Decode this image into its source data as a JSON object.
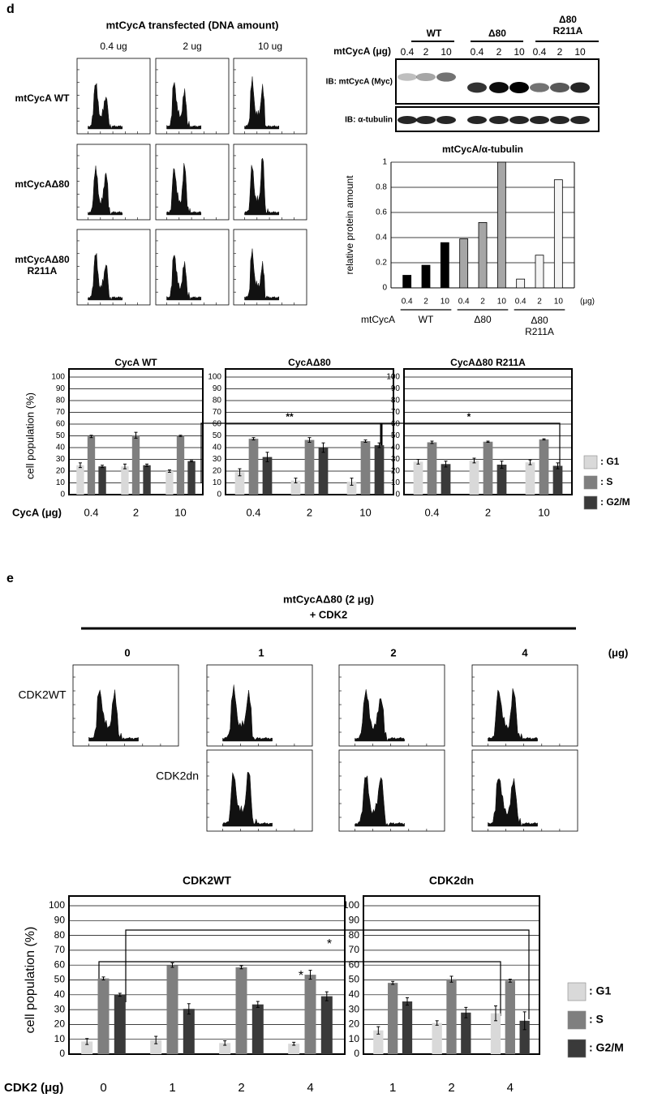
{
  "labels": {
    "panel_d": "d",
    "panel_e": "e",
    "d_title": "mtCycA  transfected (DNA amount)",
    "d_doses": [
      "0.4 ug",
      "2 ug",
      "10 ug"
    ],
    "d_rows": [
      "mtCycA WT",
      "mtCycAΔ80",
      "mtCycAΔ80 R211A"
    ],
    "blot_groups": [
      "WT",
      "Δ80",
      "Δ80 R211A"
    ],
    "blot_dose_label": "mtCycA (μg)",
    "blot_lanes": [
      "0.4",
      "2",
      "10",
      "0.4",
      "2",
      "10",
      "0.4",
      "2",
      "10"
    ],
    "blot_rows": [
      "IB: mtCycA (Myc)",
      "IB: α-tubulin"
    ],
    "significance_d": [
      "**",
      "*"
    ],
    "e_title": "mtCycAΔ80 (2 μg)",
    "e_subtitle": "+ CDK2",
    "e_doses": [
      "0",
      "1",
      "2",
      "4"
    ],
    "e_unit": "(μg)",
    "e_rows": [
      "CDK2WT",
      "CDK2dn"
    ],
    "significance_e": [
      "*",
      "*"
    ]
  },
  "chart_data": [
    {
      "type": "bar",
      "title": "mtCycA/α-tubulin",
      "y_label": "relative protein amount",
      "x_label": "mtCycA",
      "x_unit": "(μg)",
      "categories": [
        "0.4",
        "2",
        "10",
        "0.4",
        "2",
        "10",
        "0.4",
        "2",
        "10"
      ],
      "groups": [
        "WT",
        "Δ80",
        "Δ80 R211A"
      ],
      "values": [
        0.1,
        0.18,
        0.36,
        0.39,
        0.52,
        1.0,
        0.07,
        0.26,
        0.86
      ],
      "colors": [
        "#000000",
        "#000000",
        "#000000",
        "#a6a6a6",
        "#a6a6a6",
        "#a6a6a6",
        "#f4f4f4",
        "#f4f4f4",
        "#f4f4f4"
      ],
      "ylim": [
        0,
        1
      ],
      "yticks": [
        0,
        0.2,
        0.4,
        0.6,
        0.8,
        1
      ],
      "grid": true
    },
    {
      "type": "grouped_bar",
      "title": "CycA WT",
      "y_label": "cell population (%)",
      "x_label": "CycA (μg)",
      "categories": [
        "0.4",
        "2",
        "10"
      ],
      "series": [
        {
          "name": ": G1",
          "color": "#d9d9d9",
          "values": [
            25,
            24,
            20
          ],
          "errors": [
            2,
            2,
            1
          ]
        },
        {
          "name": ": S",
          "color": "#7f7f7f",
          "values": [
            49.5,
            50.5,
            50
          ],
          "errors": [
            1,
            2.5,
            0.5
          ]
        },
        {
          "name": ": G2/M",
          "color": "#3a3a3a",
          "values": [
            24,
            25,
            28.5
          ],
          "errors": [
            1,
            1,
            0.5
          ]
        }
      ],
      "ylim": [
        0,
        100
      ],
      "yticks": [
        0,
        10,
        20,
        30,
        40,
        50,
        60,
        70,
        80,
        90,
        100
      ],
      "grid": true
    },
    {
      "type": "grouped_bar",
      "title": "CycAΔ80",
      "categories": [
        "0.4",
        "2",
        "10"
      ],
      "series": [
        {
          "name": ": G1",
          "color": "#d9d9d9",
          "values": [
            19,
            12,
            11
          ],
          "errors": [
            3,
            2,
            3
          ]
        },
        {
          "name": ": S",
          "color": "#7f7f7f",
          "values": [
            47.5,
            46.5,
            45.5
          ],
          "errors": [
            1,
            2,
            1
          ]
        },
        {
          "name": ": G2/M",
          "color": "#3a3a3a",
          "values": [
            32,
            40,
            42
          ],
          "errors": [
            4,
            4,
            2
          ]
        }
      ],
      "ylim": [
        0,
        100
      ],
      "yticks": [
        0,
        10,
        20,
        30,
        40,
        50,
        60,
        70,
        80,
        90,
        100
      ],
      "grid": true
    },
    {
      "type": "grouped_bar",
      "title": "CycAΔ80 R211A",
      "legend": "right",
      "categories": [
        "0.4",
        "2",
        "10"
      ],
      "series": [
        {
          "name": ": G1",
          "color": "#d9d9d9",
          "values": [
            28,
            29,
            27.5
          ],
          "errors": [
            2,
            2,
            2
          ]
        },
        {
          "name": ": S",
          "color": "#7f7f7f",
          "values": [
            44.5,
            45,
            47
          ],
          "errors": [
            1,
            0.5,
            0.5
          ]
        },
        {
          "name": ": G2/M",
          "color": "#3a3a3a",
          "values": [
            26,
            25.5,
            24.5
          ],
          "errors": [
            2.5,
            3,
            2.5
          ]
        }
      ],
      "ylim": [
        0,
        100
      ],
      "yticks": [
        0,
        10,
        20,
        30,
        40,
        50,
        60,
        70,
        80,
        90,
        100
      ],
      "grid": true
    },
    {
      "type": "grouped_bar",
      "title": "CDK2WT",
      "y_label": "cell population (%)",
      "x_label": "CDK2 (μg)",
      "categories": [
        "0",
        "1",
        "2",
        "4"
      ],
      "series": [
        {
          "name": ": G1",
          "color": "#d9d9d9",
          "values": [
            8.5,
            9.5,
            7.5,
            7
          ],
          "errors": [
            2,
            2.5,
            1.5,
            1
          ]
        },
        {
          "name": ": S",
          "color": "#7f7f7f",
          "values": [
            51,
            60,
            58.5,
            53.5
          ],
          "errors": [
            1,
            1.5,
            1,
            3
          ]
        },
        {
          "name": ": G2/M",
          "color": "#3a3a3a",
          "values": [
            40,
            30.5,
            33.5,
            39
          ],
          "errors": [
            1,
            3.5,
            2,
            3
          ]
        }
      ],
      "ylim": [
        0,
        100
      ],
      "yticks": [
        0,
        10,
        20,
        30,
        40,
        50,
        60,
        70,
        80,
        90,
        100
      ],
      "grid": true
    },
    {
      "type": "grouped_bar",
      "title": "CDK2dn",
      "legend": "right",
      "categories": [
        "1",
        "2",
        "4"
      ],
      "series": [
        {
          "name": ": G1",
          "color": "#d9d9d9",
          "values": [
            16,
            21,
            27.5
          ],
          "errors": [
            2.5,
            1.5,
            5
          ]
        },
        {
          "name": ": S",
          "color": "#7f7f7f",
          "values": [
            48,
            50.5,
            49.5
          ],
          "errors": [
            1,
            2,
            1
          ]
        },
        {
          "name": ": G2/M",
          "color": "#3a3a3a",
          "values": [
            35.5,
            28,
            22.5
          ],
          "errors": [
            2.5,
            3.5,
            6
          ]
        }
      ],
      "ylim": [
        0,
        100
      ],
      "yticks": [
        0,
        10,
        20,
        30,
        40,
        50,
        60,
        70,
        80,
        90,
        100
      ],
      "grid": true
    }
  ]
}
